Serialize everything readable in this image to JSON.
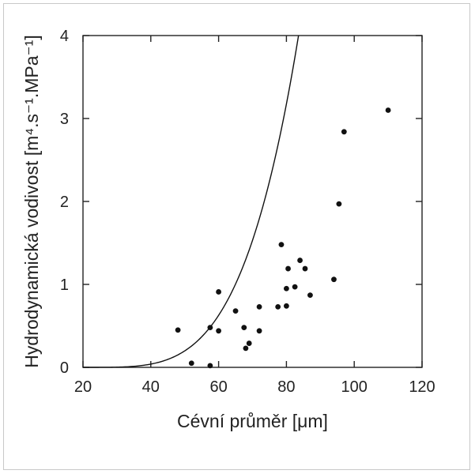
{
  "chart_data": {
    "type": "scatter",
    "xlabel": "Cévní průměr [μm]",
    "ylabel": "Hydrodynamická vodivost [m⁴.s⁻¹.MPa⁻¹]",
    "xlim": [
      20,
      120
    ],
    "ylim": [
      0,
      4
    ],
    "xticks": [
      "20",
      "40",
      "60",
      "80",
      "100",
      "120"
    ],
    "yticks": [
      "0",
      "1",
      "2",
      "3",
      "4"
    ],
    "grid": false,
    "points": [
      {
        "x": 48,
        "y": 0.45
      },
      {
        "x": 52,
        "y": 0.05
      },
      {
        "x": 57.5,
        "y": 0.48
      },
      {
        "x": 57.5,
        "y": 0.02
      },
      {
        "x": 60,
        "y": 0.91
      },
      {
        "x": 60,
        "y": 0.44
      },
      {
        "x": 65,
        "y": 0.68
      },
      {
        "x": 67.5,
        "y": 0.48
      },
      {
        "x": 68,
        "y": 0.23
      },
      {
        "x": 69,
        "y": 0.29
      },
      {
        "x": 72,
        "y": 0.73
      },
      {
        "x": 72,
        "y": 0.44
      },
      {
        "x": 77.5,
        "y": 0.73
      },
      {
        "x": 78.5,
        "y": 1.48
      },
      {
        "x": 80,
        "y": 0.95
      },
      {
        "x": 80,
        "y": 0.74
      },
      {
        "x": 80.5,
        "y": 1.19
      },
      {
        "x": 82.5,
        "y": 0.97
      },
      {
        "x": 84,
        "y": 1.29
      },
      {
        "x": 85.5,
        "y": 1.19
      },
      {
        "x": 87,
        "y": 0.87
      },
      {
        "x": 94,
        "y": 1.06
      },
      {
        "x": 95.5,
        "y": 1.97
      },
      {
        "x": 97,
        "y": 2.84
      },
      {
        "x": 110,
        "y": 3.1
      }
    ],
    "fit_curve": {
      "form": "y = k * (x - x0)^4",
      "k": 2.45e-07,
      "x0": 20
    }
  }
}
